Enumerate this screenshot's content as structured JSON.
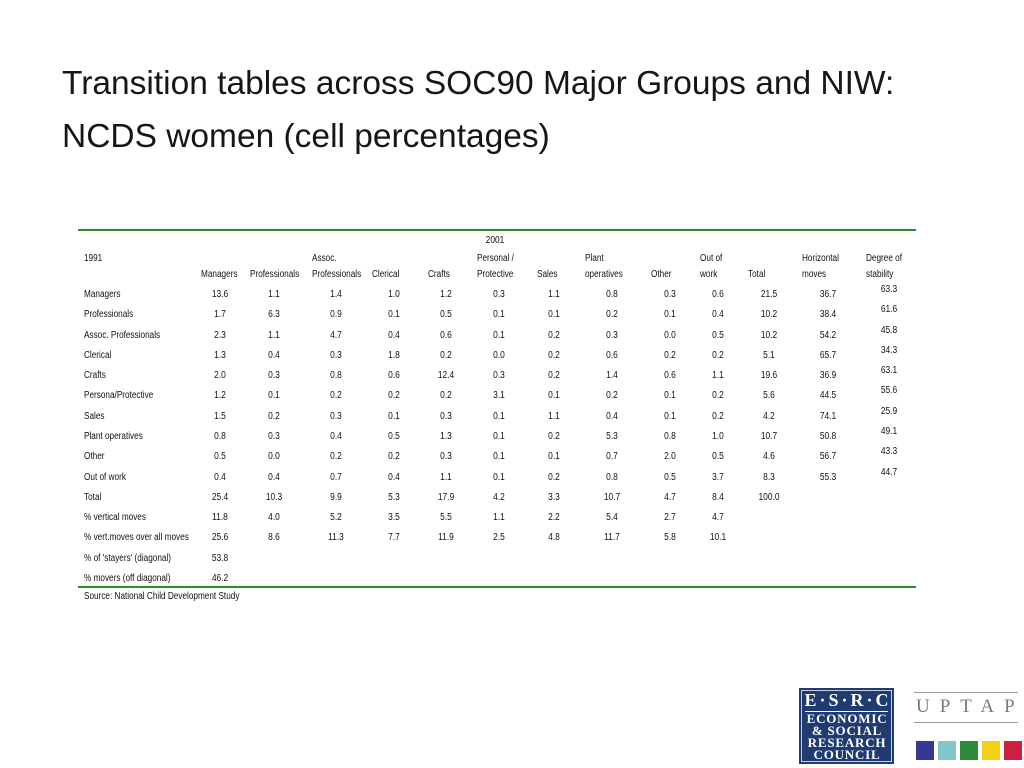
{
  "slide": {
    "title_lines": [
      "Transition tables across SOC90 Major Groups and NIW:",
      "NCDS women (cell percentages)"
    ]
  },
  "theme": {
    "rule_color": "#2e8b2e"
  },
  "table": {
    "destination_year": "2001",
    "origin_year": "1991",
    "columns": [
      [
        "Managers"
      ],
      [
        "Professionals"
      ],
      [
        "Assoc.",
        "Professionals"
      ],
      [
        "Clerical"
      ],
      [
        "Crafts"
      ],
      [
        "Personal /",
        "Protective"
      ],
      [
        "Sales"
      ],
      [
        "Plant",
        "operatives"
      ],
      [
        "Other"
      ],
      [
        "Out of",
        "work"
      ],
      [
        "Total"
      ],
      [
        "Horizontal",
        "moves"
      ],
      [
        "Degree of",
        "stability"
      ]
    ],
    "rows": [
      {
        "label": "Managers",
        "values": [
          "13.6",
          "1.1",
          "1.4",
          "1.0",
          "1.2",
          "0.3",
          "1.1",
          "0.8",
          "0.3",
          "0.6",
          "21.5",
          "36.7"
        ],
        "stability": "63.3"
      },
      {
        "label": "Professionals",
        "values": [
          "1.7",
          "6.3",
          "0.9",
          "0.1",
          "0.5",
          "0.1",
          "0.1",
          "0.2",
          "0.1",
          "0.4",
          "10.2",
          "38.4"
        ],
        "stability": "61.6"
      },
      {
        "label": "Assoc. Professionals",
        "values": [
          "2.3",
          "1.1",
          "4.7",
          "0.4",
          "0.6",
          "0.1",
          "0.2",
          "0.3",
          "0.0",
          "0.5",
          "10.2",
          "54.2"
        ],
        "stability": "45.8"
      },
      {
        "label": "Clerical",
        "values": [
          "1.3",
          "0.4",
          "0.3",
          "1.8",
          "0.2",
          "0.0",
          "0.2",
          "0.6",
          "0.2",
          "0.2",
          "5.1",
          "65.7"
        ],
        "stability": "34.3"
      },
      {
        "label": "Crafts",
        "values": [
          "2.0",
          "0.3",
          "0.8",
          "0.6",
          "12.4",
          "0.3",
          "0.2",
          "1.4",
          "0.6",
          "1.1",
          "19.6",
          "36.9"
        ],
        "stability": "63.1"
      },
      {
        "label": "Persona/Protective",
        "values": [
          "1.2",
          "0.1",
          "0.2",
          "0.2",
          "0.2",
          "3.1",
          "0.1",
          "0.2",
          "0.1",
          "0.2",
          "5.6",
          "44.5"
        ],
        "stability": "55.6"
      },
      {
        "label": "Sales",
        "values": [
          "1.5",
          "0.2",
          "0.3",
          "0.1",
          "0.3",
          "0.1",
          "1.1",
          "0.4",
          "0.1",
          "0.2",
          "4.2",
          "74.1"
        ],
        "stability": "25.9"
      },
      {
        "label": "Plant operatives",
        "values": [
          "0.8",
          "0.3",
          "0.4",
          "0.5",
          "1.3",
          "0.1",
          "0.2",
          "5.3",
          "0.8",
          "1.0",
          "10.7",
          "50.8"
        ],
        "stability": "49.1"
      },
      {
        "label": "Other",
        "values": [
          "0.5",
          "0.0",
          "0.2",
          "0.2",
          "0.3",
          "0.1",
          "0.1",
          "0.7",
          "2.0",
          "0.5",
          "4.6",
          "56.7"
        ],
        "stability": "43.3"
      },
      {
        "label": "Out of work",
        "values": [
          "0.4",
          "0.4",
          "0.7",
          "0.4",
          "1.1",
          "0.1",
          "0.2",
          "0.8",
          "0.5",
          "3.7",
          "8.3",
          "55.3"
        ],
        "stability": "44.7"
      },
      {
        "label": "Total",
        "values": [
          "25.4",
          "10.3",
          "9.9",
          "5.3",
          "17.9",
          "4.2",
          "3.3",
          "10.7",
          "4.7",
          "8.4",
          "100.0"
        ]
      },
      {
        "label": "% vertical moves",
        "values": [
          "11.8",
          "4.0",
          "5.2",
          "3.5",
          "5.5",
          "1.1",
          "2.2",
          "5.4",
          "2.7",
          "4.7"
        ]
      },
      {
        "label": "% vert.moves over all moves",
        "values": [
          "25.6",
          "8.6",
          "11.3",
          "7.7",
          "11.9",
          "2.5",
          "4.8",
          "11.7",
          "5.8",
          "10.1"
        ]
      },
      {
        "label": "% of 'stayers' (diagonal)",
        "values": [
          "53.8"
        ]
      },
      {
        "label": "% movers (off diagonal)",
        "values": [
          "46.2"
        ]
      }
    ],
    "source": "Source: National Child Development Study"
  },
  "logos": {
    "esrc": {
      "abbreviation": "E·S·R·C",
      "lines": [
        "ECONOMIC",
        "& SOCIAL",
        "RESEARCH",
        "COUNCIL"
      ],
      "background": "#1f3b70"
    },
    "uptap": {
      "wordmark": "UPTAP",
      "squares": [
        "#36398f",
        "#82c6c8",
        "#2e8a3f",
        "#f3d115",
        "#cd1f42"
      ]
    }
  }
}
